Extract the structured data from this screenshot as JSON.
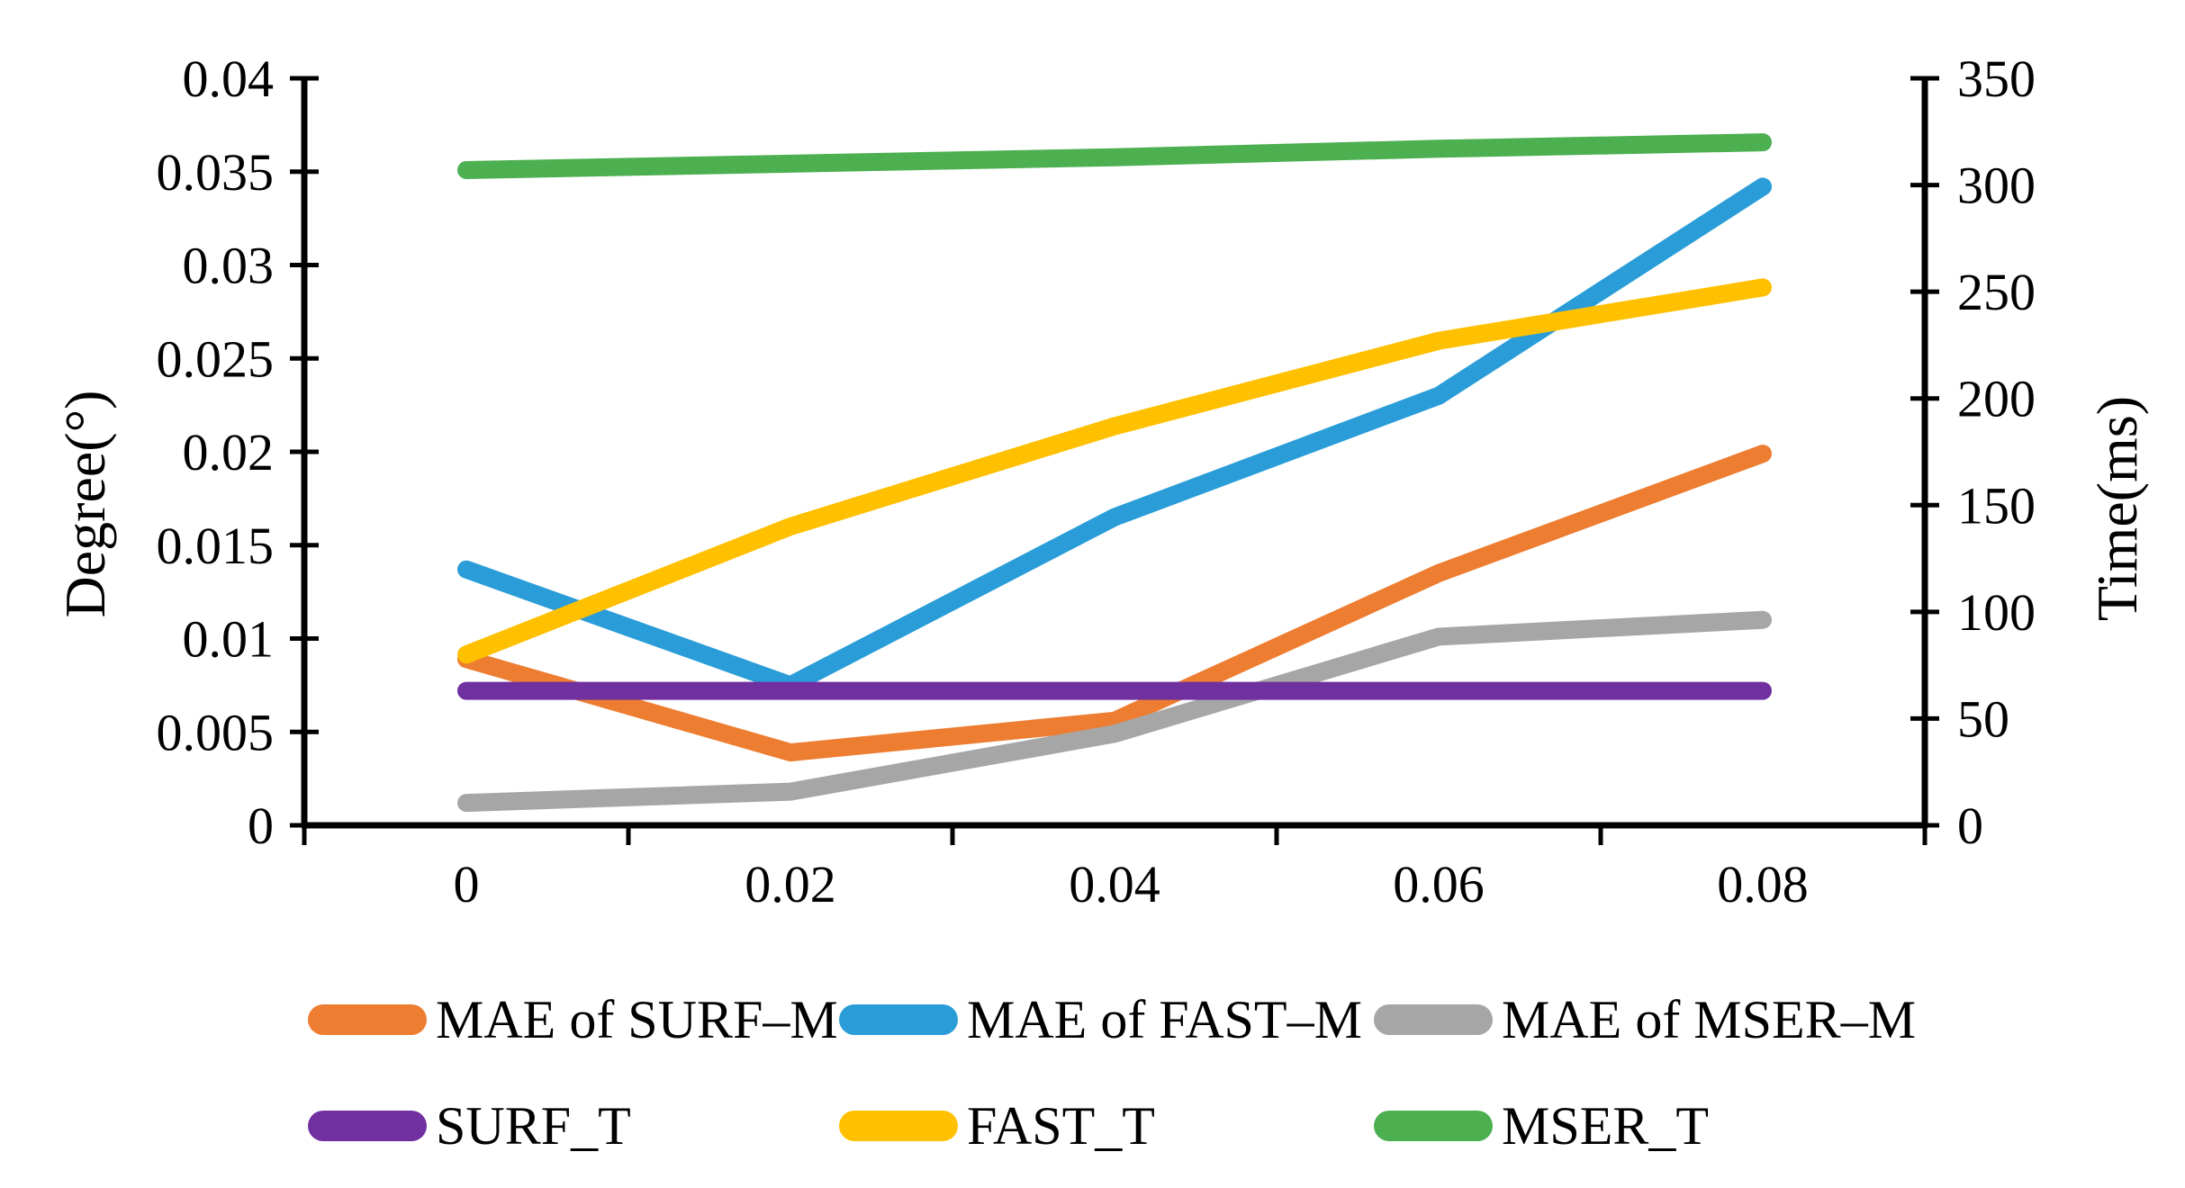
{
  "chart_data": {
    "type": "line",
    "title": "",
    "x": [
      0,
      0.02,
      0.04,
      0.06,
      0.08
    ],
    "x_tick_labels": [
      "0",
      "0.02",
      "0.04",
      "0.06",
      "0.08"
    ],
    "left_axis": {
      "label": "Degree(°)",
      "range": [
        0,
        0.04
      ],
      "tick_labels": [
        "0",
        "0.005",
        "0.01",
        "0.015",
        "0.02",
        "0.025",
        "0.03",
        "0.035",
        "0.04"
      ],
      "tick_values": [
        0,
        0.005,
        0.01,
        0.015,
        0.02,
        0.025,
        0.03,
        0.035,
        0.04
      ]
    },
    "right_axis": {
      "label": "Time(ms)",
      "range": [
        0,
        350
      ],
      "tick_labels": [
        "0",
        "50",
        "100",
        "150",
        "200",
        "250",
        "300",
        "350"
      ],
      "tick_values": [
        0,
        50,
        100,
        150,
        200,
        250,
        300,
        350
      ]
    },
    "grid": "off",
    "legend_position": "bottom",
    "legend_rows": [
      [
        0,
        1,
        2
      ],
      [
        3,
        4,
        5
      ]
    ],
    "series": [
      {
        "name": "MAE of SURF–M",
        "axis": "left",
        "color": "#ED7D31",
        "values": [
          0.0089,
          0.0039,
          0.0056,
          0.0135,
          0.0199
        ]
      },
      {
        "name": "MAE of FAST–M",
        "axis": "left",
        "color": "#2A9DD8",
        "values": [
          0.0137,
          0.0075,
          0.0165,
          0.023,
          0.0342
        ]
      },
      {
        "name": "MAE of MSER–M",
        "axis": "left",
        "color": "#A6A6A6",
        "values": [
          0.0012,
          0.0018,
          0.0049,
          0.0101,
          0.011
        ]
      },
      {
        "name": "SURF_T",
        "axis": "right",
        "color": "#7030A0",
        "values": [
          63,
          63,
          63,
          63,
          63
        ]
      },
      {
        "name": "FAST_T",
        "axis": "right",
        "color": "#FFC000",
        "values": [
          80,
          140,
          187,
          227,
          252
        ]
      },
      {
        "name": "MSER_T",
        "axis": "right",
        "color": "#4CAF50",
        "values": [
          307,
          310,
          313,
          317,
          320
        ]
      }
    ]
  }
}
